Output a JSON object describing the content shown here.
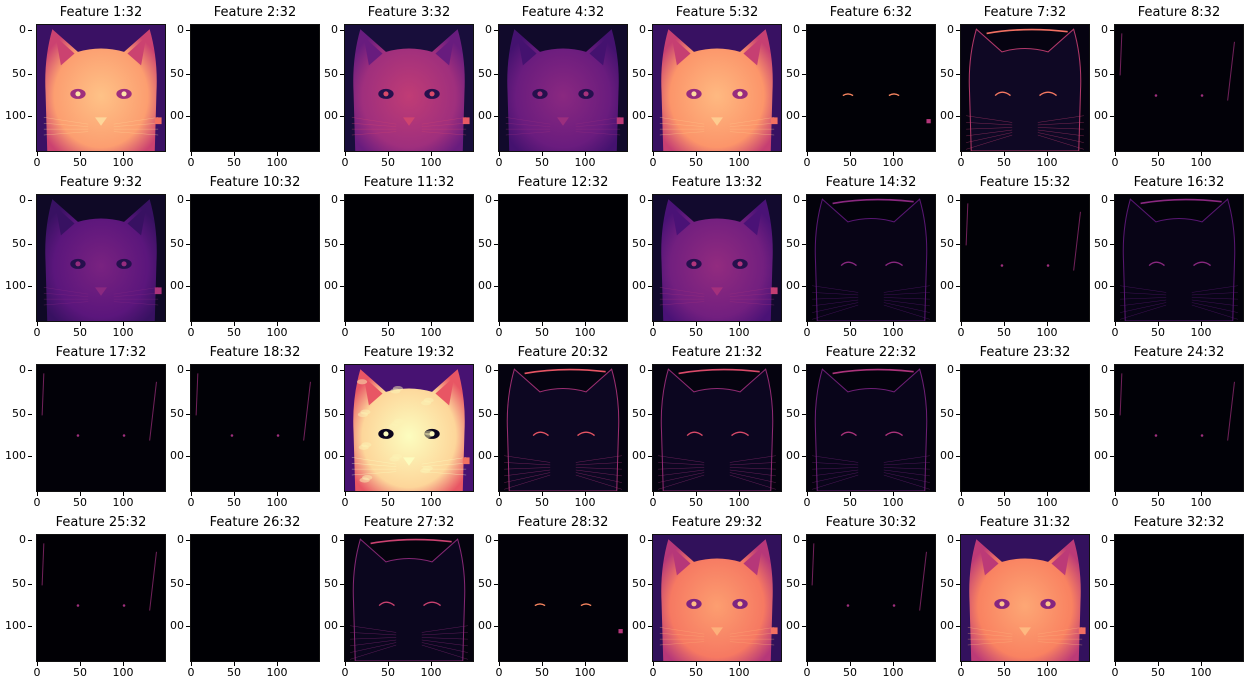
{
  "axis": {
    "x_ticks": [
      "0",
      "50",
      "100"
    ],
    "y_ticks": [
      "0",
      "50",
      "100"
    ],
    "y_ticks_clipped": [
      "0",
      "50",
      "00"
    ]
  },
  "colormap": "magma",
  "panels": [
    {
      "title": "Feature 1:32",
      "level": 0.8,
      "style": "bright"
    },
    {
      "title": "Feature 2:32",
      "level": 0.0,
      "style": "blank"
    },
    {
      "title": "Feature 3:32",
      "level": 0.45,
      "style": "medium"
    },
    {
      "title": "Feature 4:32",
      "level": 0.32,
      "style": "medium"
    },
    {
      "title": "Feature 5:32",
      "level": 0.78,
      "style": "bright"
    },
    {
      "title": "Feature 6:32",
      "level": 0.03,
      "style": "dots"
    },
    {
      "title": "Feature 7:32",
      "level": 0.18,
      "style": "edges"
    },
    {
      "title": "Feature 8:32",
      "level": 0.06,
      "style": "sparse"
    },
    {
      "title": "Feature 9:32",
      "level": 0.28,
      "style": "medium"
    },
    {
      "title": "Feature 10:32",
      "level": 0.0,
      "style": "blank"
    },
    {
      "title": "Feature 11:32",
      "level": 0.0,
      "style": "blank"
    },
    {
      "title": "Feature 12:32",
      "level": 0.01,
      "style": "blank"
    },
    {
      "title": "Feature 13:32",
      "level": 0.34,
      "style": "medium"
    },
    {
      "title": "Feature 14:32",
      "level": 0.1,
      "style": "edges"
    },
    {
      "title": "Feature 15:32",
      "level": 0.03,
      "style": "sparse"
    },
    {
      "title": "Feature 16:32",
      "level": 0.1,
      "style": "edges"
    },
    {
      "title": "Feature 17:32",
      "level": 0.06,
      "style": "sparse"
    },
    {
      "title": "Feature 18:32",
      "level": 0.03,
      "style": "sparse"
    },
    {
      "title": "Feature 19:32",
      "level": 0.92,
      "style": "fur"
    },
    {
      "title": "Feature 20:32",
      "level": 0.16,
      "style": "edges"
    },
    {
      "title": "Feature 21:32",
      "level": 0.15,
      "style": "edges"
    },
    {
      "title": "Feature 22:32",
      "level": 0.12,
      "style": "edges"
    },
    {
      "title": "Feature 23:32",
      "level": 0.0,
      "style": "blank"
    },
    {
      "title": "Feature 24:32",
      "level": 0.04,
      "style": "sparse"
    },
    {
      "title": "Feature 25:32",
      "level": 0.02,
      "style": "sparse"
    },
    {
      "title": "Feature 26:32",
      "level": 0.0,
      "style": "blank"
    },
    {
      "title": "Feature 27:32",
      "level": 0.14,
      "style": "edges"
    },
    {
      "title": "Feature 28:32",
      "level": 0.05,
      "style": "dots"
    },
    {
      "title": "Feature 29:32",
      "level": 0.72,
      "style": "bright"
    },
    {
      "title": "Feature 30:32",
      "level": 0.03,
      "style": "sparse"
    },
    {
      "title": "Feature 31:32",
      "level": 0.74,
      "style": "bright"
    },
    {
      "title": "Feature 32:32",
      "level": 0.0,
      "style": "blank"
    }
  ]
}
